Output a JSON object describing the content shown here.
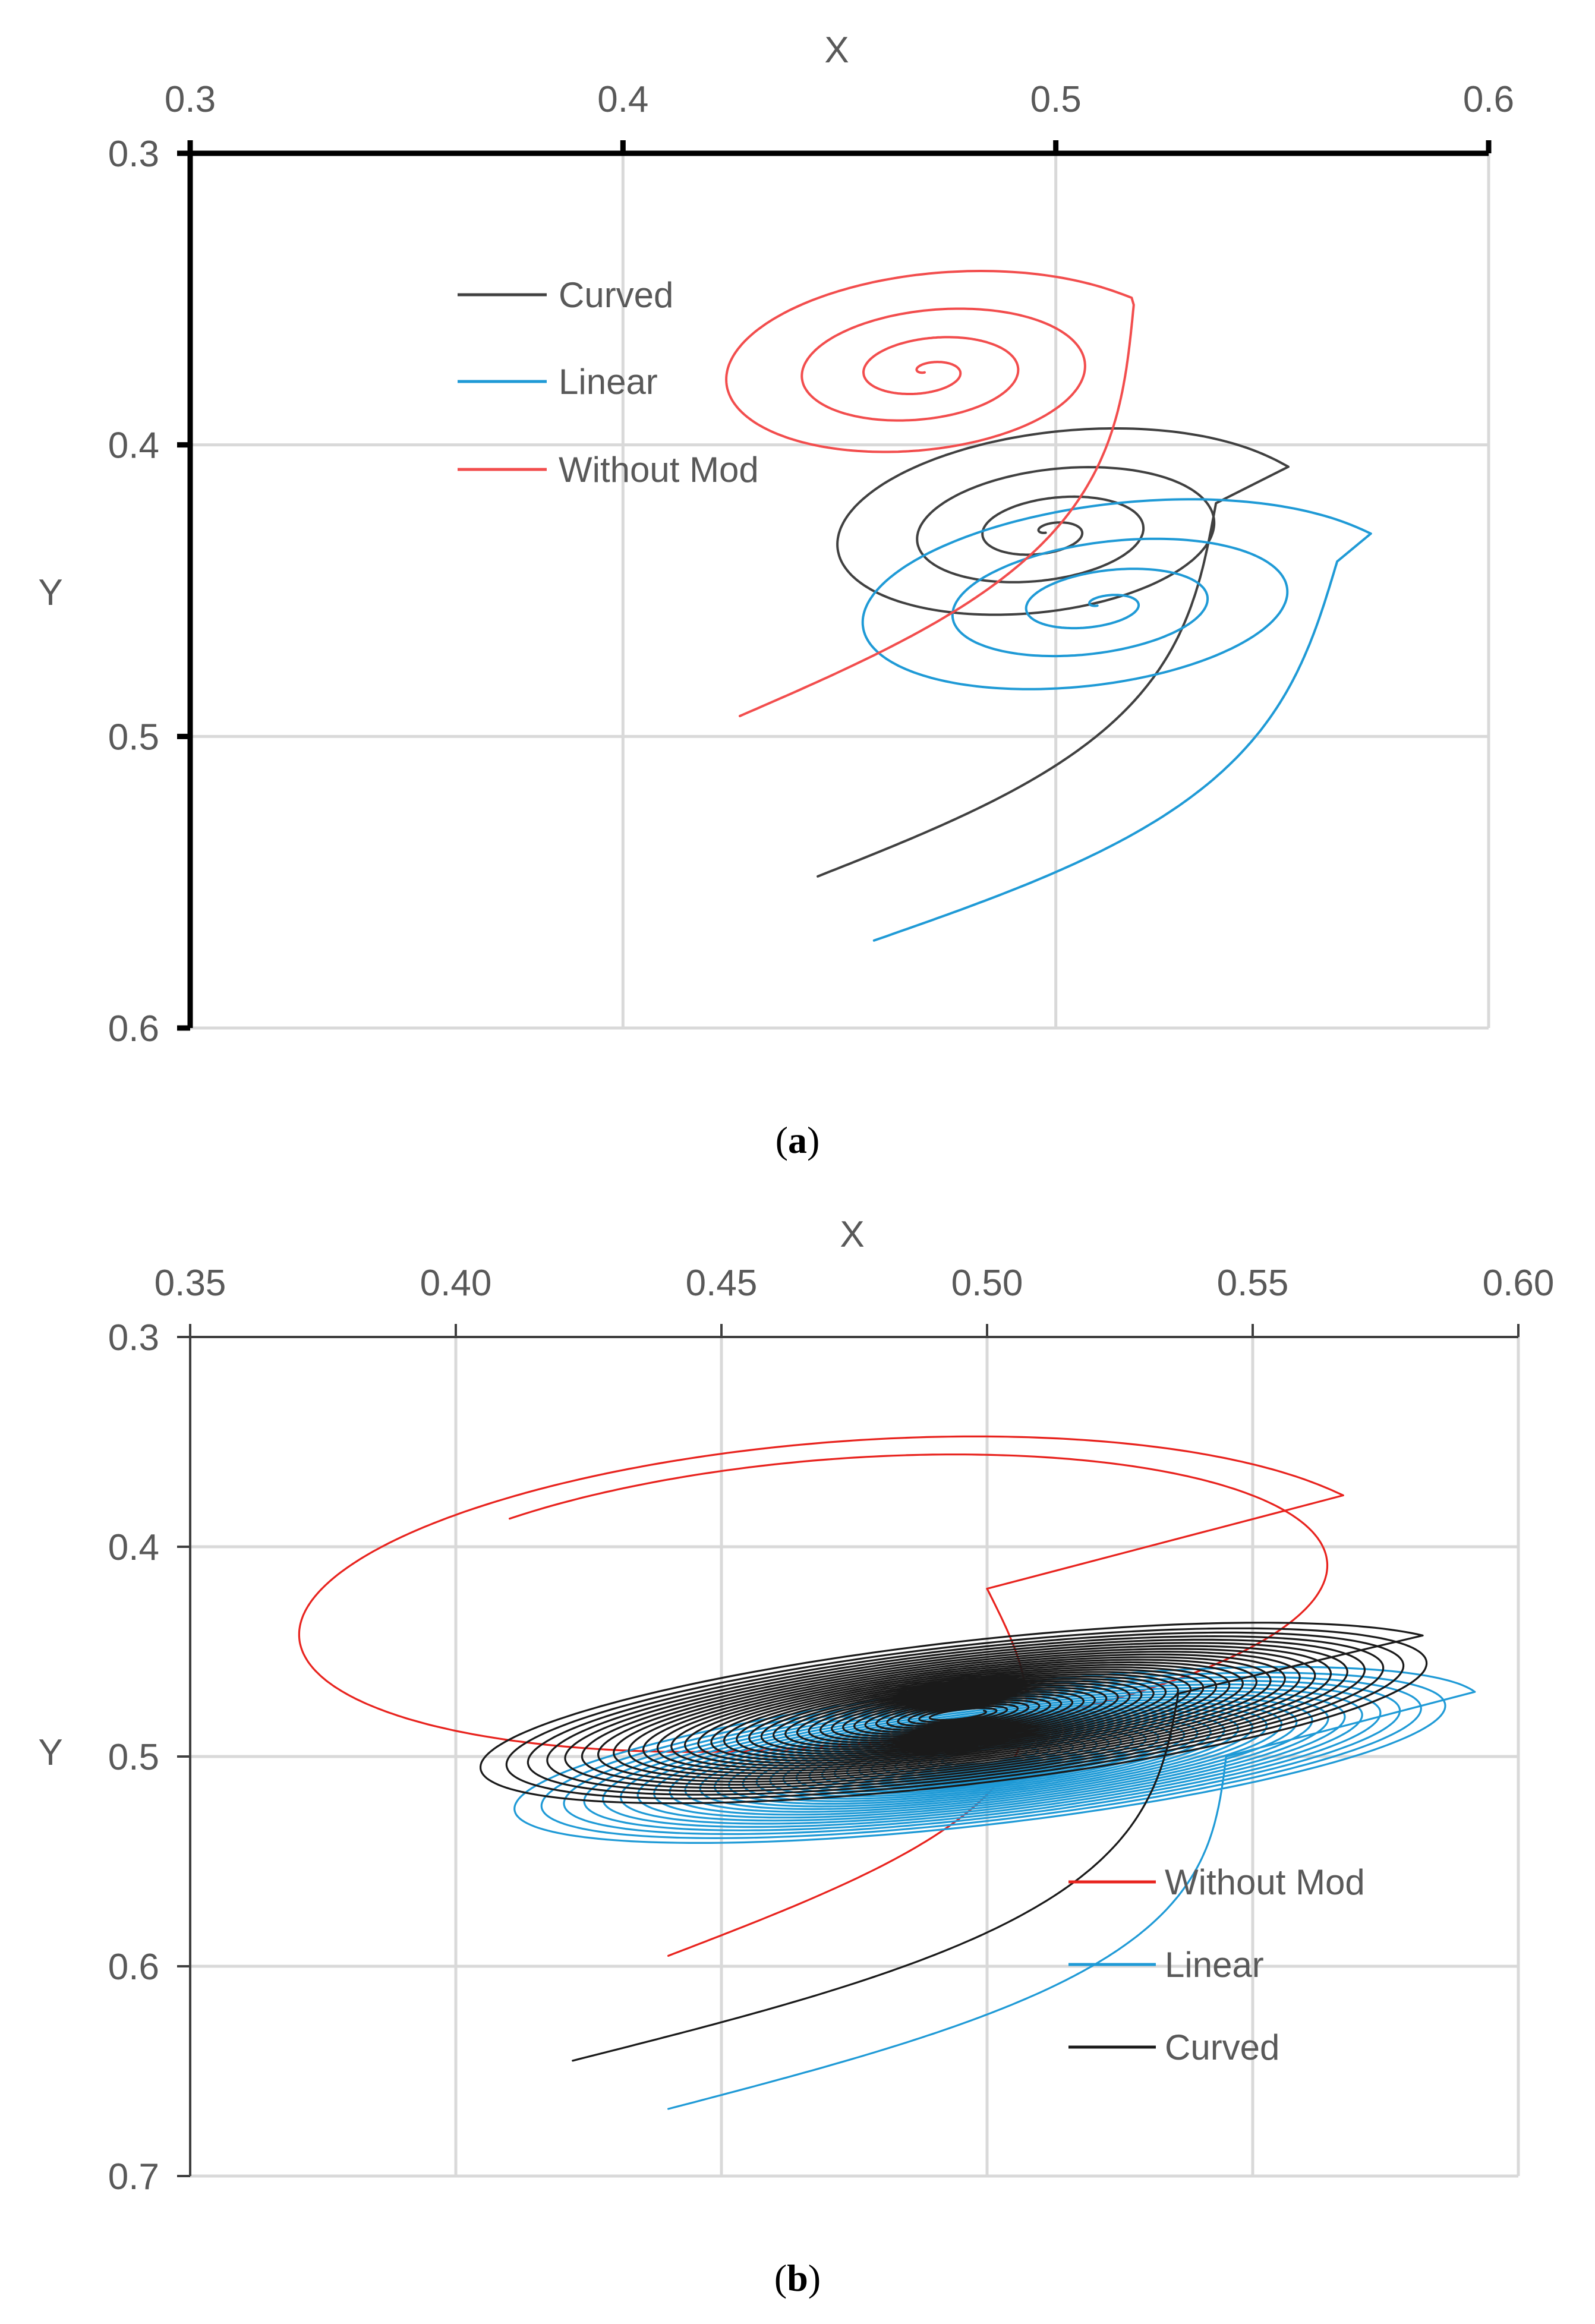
{
  "chart_data": [
    {
      "id": "a",
      "type": "line",
      "caption": "a",
      "xlabel": "X",
      "ylabel": "Y",
      "xlim": [
        0.3,
        0.6
      ],
      "ylim": [
        0.3,
        0.6
      ],
      "y_inverted": true,
      "x_axis_position": "top",
      "grid": true,
      "legend_placement": "top-left",
      "x_ticks": [
        "0.3",
        "0.4",
        "0.5",
        "0.6"
      ],
      "y_ticks": [
        "0.3",
        "0.4",
        "0.5",
        "0.6"
      ],
      "series": [
        {
          "name": "Curved",
          "color": "#404040",
          "spiral": {
            "start": [
              0.445,
              0.548
            ],
            "anchor": [
              0.537,
              0.42
            ],
            "center": [
              0.498,
              0.43
            ],
            "rx": 0.062,
            "ry": 0.038,
            "tilt_deg": -12,
            "turns": 3.5,
            "r_min": 0.006
          }
        },
        {
          "name": "Linear",
          "color": "#1f9ad6",
          "spiral": {
            "start": [
              0.458,
              0.57
            ],
            "anchor": [
              0.565,
              0.44
            ],
            "center": [
              0.51,
              0.455
            ],
            "rx": 0.07,
            "ry": 0.038,
            "tilt_deg": -12,
            "turns": 3.5,
            "r_min": 0.006
          }
        },
        {
          "name": "Without Mod",
          "color": "#f24d4d",
          "spiral": {
            "start": [
              0.427,
              0.493
            ],
            "anchor": [
              0.518,
              0.352
            ],
            "center": [
              0.47,
              0.375
            ],
            "rx": 0.058,
            "ry": 0.037,
            "tilt_deg": -10,
            "turns": 3.5,
            "r_min": 0.006
          }
        }
      ]
    },
    {
      "id": "b",
      "type": "line",
      "caption": "b",
      "xlabel": "X",
      "ylabel": "Y",
      "xlim": [
        0.35,
        0.6
      ],
      "ylim": [
        0.3,
        0.7
      ],
      "y_inverted": true,
      "x_axis_position": "top",
      "grid": true,
      "legend_placement": "bottom-right",
      "x_ticks": [
        "0.35",
        "0.40",
        "0.45",
        "0.50",
        "0.55",
        "0.60"
      ],
      "y_ticks": [
        "0.3",
        "0.4",
        "0.5",
        "0.6",
        "0.7"
      ],
      "series": [
        {
          "name": "Without Mod",
          "color": "#e8231e",
          "spiral": {
            "start": [
              0.44,
              0.595
            ],
            "anchor": [
              0.5,
              0.42
            ],
            "center": [
              0.47,
              0.425
            ],
            "rx": 0.11,
            "ry": 0.075,
            "tilt_deg": -20,
            "turns": 1.3,
            "r_min": 0.85
          }
        },
        {
          "name": "Linear",
          "color": "#1f9ad6",
          "spiral": {
            "start": [
              0.44,
              0.668
            ],
            "anchor": [
              0.545,
              0.5
            ],
            "center": [
              0.5,
              0.5
            ],
            "rx": 0.097,
            "ry": 0.033,
            "tilt_deg": -18,
            "turns": 30,
            "r_min": 0.08
          }
        },
        {
          "name": "Curved",
          "color": "#1a1a1a",
          "spiral": {
            "start": [
              0.422,
              0.645
            ],
            "anchor": [
              0.536,
              0.47
            ],
            "center": [
              0.495,
              0.48
            ],
            "rx": 0.098,
            "ry": 0.034,
            "tilt_deg": -18,
            "turns": 34,
            "r_min": 0.05
          }
        }
      ]
    }
  ]
}
